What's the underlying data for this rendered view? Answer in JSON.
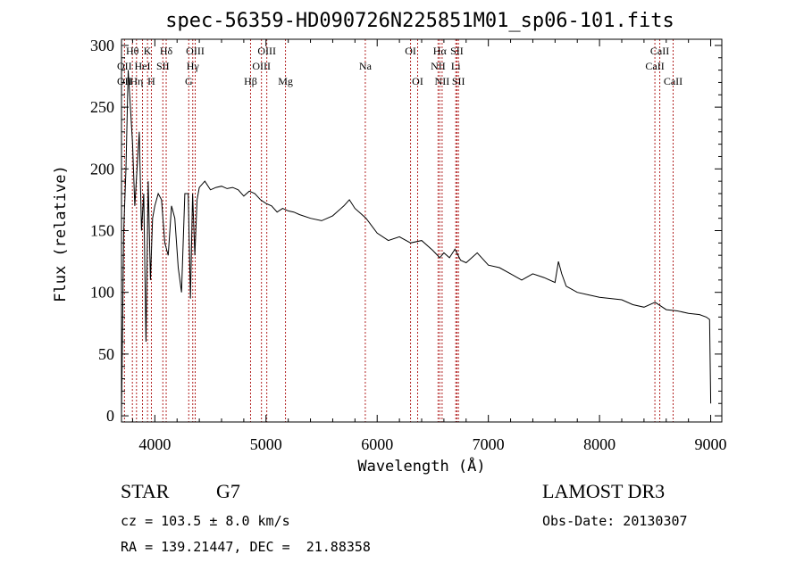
{
  "chart_data": {
    "type": "line",
    "title": "spec-56359-HD090726N225851M01_sp06-101.fits",
    "xlabel": "Wavelength (Å)",
    "ylabel": "Flux (relative)",
    "xlim": [
      3700,
      9100
    ],
    "ylim": [
      -5,
      305
    ],
    "xticks": [
      4000,
      5000,
      6000,
      7000,
      8000,
      9000
    ],
    "xtick_labels": [
      "4000",
      "5000",
      "6000",
      "7000",
      "8000",
      "9000"
    ],
    "yticks": [
      0,
      50,
      100,
      150,
      200,
      250,
      300
    ],
    "ytick_labels": [
      "0",
      "50",
      "100",
      "150",
      "200",
      "250",
      "300"
    ],
    "series": [
      {
        "name": "flux",
        "x": [
          3700,
          3720,
          3740,
          3760,
          3780,
          3800,
          3820,
          3840,
          3860,
          3880,
          3900,
          3920,
          3940,
          3960,
          3980,
          4000,
          4030,
          4060,
          4090,
          4120,
          4150,
          4180,
          4210,
          4240,
          4270,
          4300,
          4320,
          4340,
          4360,
          4380,
          4400,
          4450,
          4500,
          4550,
          4600,
          4650,
          4700,
          4750,
          4800,
          4850,
          4900,
          4950,
          5000,
          5050,
          5100,
          5150,
          5200,
          5250,
          5300,
          5400,
          5500,
          5600,
          5700,
          5750,
          5800,
          5850,
          5900,
          6000,
          6100,
          6200,
          6300,
          6400,
          6500,
          6563,
          6600,
          6650,
          6700,
          6750,
          6800,
          6900,
          7000,
          7100,
          7200,
          7300,
          7400,
          7500,
          7600,
          7630,
          7660,
          7700,
          7800,
          7900,
          8000,
          8100,
          8200,
          8300,
          8400,
          8500,
          8600,
          8700,
          8800,
          8900,
          8960,
          8990,
          9000
        ],
        "y": [
          0,
          150,
          200,
          280,
          250,
          220,
          170,
          200,
          230,
          150,
          180,
          60,
          190,
          110,
          160,
          170,
          180,
          175,
          140,
          130,
          170,
          160,
          120,
          100,
          180,
          180,
          95,
          180,
          130,
          175,
          185,
          190,
          183,
          185,
          186,
          184,
          185,
          183,
          178,
          182,
          180,
          175,
          172,
          170,
          165,
          168,
          166,
          165,
          163,
          160,
          158,
          162,
          170,
          175,
          168,
          164,
          160,
          148,
          142,
          145,
          140,
          142,
          134,
          128,
          132,
          128,
          135,
          126,
          124,
          132,
          122,
          120,
          115,
          110,
          115,
          112,
          108,
          125,
          115,
          105,
          100,
          98,
          96,
          95,
          94,
          90,
          88,
          92,
          86,
          85,
          83,
          82,
          80,
          78,
          10
        ]
      }
    ],
    "spectral_lines": [
      {
        "name": "OII",
        "x": 3727,
        "row": 2
      },
      {
        "name": "Hθ",
        "x": 3798,
        "row": 1
      },
      {
        "name": "OII",
        "x": 3727,
        "row": 3
      },
      {
        "name": "Hη",
        "x": 3835,
        "row": 3
      },
      {
        "name": "HeI",
        "x": 3889,
        "row": 2
      },
      {
        "name": "K",
        "x": 3934,
        "row": 1
      },
      {
        "name": "H",
        "x": 3969,
        "row": 3
      },
      {
        "name": "SII",
        "x": 4072,
        "row": 2
      },
      {
        "name": "Hδ",
        "x": 4102,
        "row": 1
      },
      {
        "name": "Hγ",
        "x": 4341,
        "row": 2
      },
      {
        "name": "G",
        "x": 4305,
        "row": 3
      },
      {
        "name": "OIII",
        "x": 4363,
        "row": 1
      },
      {
        "name": "Hβ",
        "x": 4861,
        "row": 3
      },
      {
        "name": "OIII",
        "x": 4959,
        "row": 2
      },
      {
        "name": "OIII",
        "x": 5007,
        "row": 1
      },
      {
        "name": "Mg",
        "x": 5175,
        "row": 3
      },
      {
        "name": "Na",
        "x": 5893,
        "row": 2
      },
      {
        "name": "OI",
        "x": 6300,
        "row": 1
      },
      {
        "name": "OI",
        "x": 6364,
        "row": 3
      },
      {
        "name": "NII",
        "x": 6548,
        "row": 2
      },
      {
        "name": "Hα",
        "x": 6563,
        "row": 1
      },
      {
        "name": "NII",
        "x": 6584,
        "row": 3
      },
      {
        "name": "Li",
        "x": 6707,
        "row": 2
      },
      {
        "name": "SII",
        "x": 6717,
        "row": 1
      },
      {
        "name": "SII",
        "x": 6731,
        "row": 3
      },
      {
        "name": "CaII",
        "x": 8498,
        "row": 2
      },
      {
        "name": "CaII",
        "x": 8542,
        "row": 1
      },
      {
        "name": "CaII",
        "x": 8662,
        "row": 3
      }
    ]
  },
  "info": {
    "class": "STAR",
    "subclass": "G7",
    "survey": "LAMOST DR3",
    "redshift": "cz = 103.5 ± 8.0 km/s",
    "obs_date": "Obs-Date: 20130307",
    "coords": "RA = 139.21447, DEC =  21.88358"
  },
  "colors": {
    "line": "#000000",
    "marker": "#b22222"
  }
}
